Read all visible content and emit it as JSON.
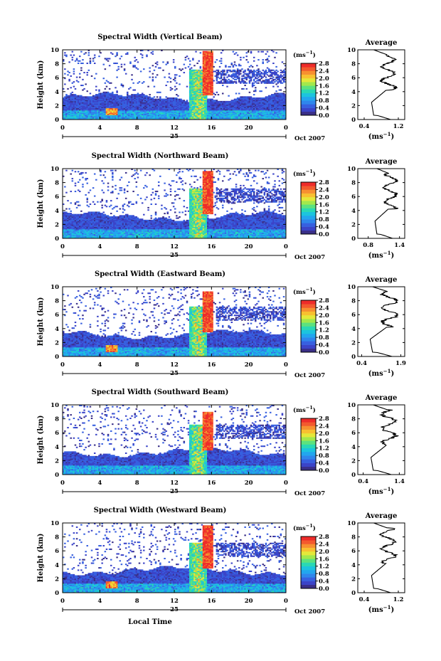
{
  "chart_data": [
    {
      "type": "heatmap",
      "title": "Spectral Width (Vertical Beam)",
      "ylabel": "Height (km)",
      "xlim": [
        0,
        24
      ],
      "ylim": [
        0,
        10
      ],
      "x_ticks": [
        "0",
        "4",
        "8",
        "12",
        "16",
        "20",
        "0"
      ],
      "y_ticks": [
        "0",
        "2",
        "4",
        "6",
        "8",
        "10"
      ],
      "day_label": "25",
      "date_label": "Oct 2007",
      "colorbar": {
        "unit": "(ms",
        "unit_exp": "−1",
        "unit_close": ")",
        "ticks": [
          "0.0",
          "0.4",
          "0.8",
          "1.2",
          "1.6",
          "2.0",
          "2.4",
          "2.8"
        ]
      },
      "profile": {
        "title": "Average",
        "xlabel": "(ms",
        "xlabel_exp": "−1",
        "xlabel_close": ")",
        "xlim": [
          0.25,
          1.35
        ],
        "x_ticks": [
          "0.4",
          "1.2"
        ],
        "y_ticks": [
          "0",
          "2",
          "4",
          "6",
          "8",
          "10"
        ]
      }
    },
    {
      "type": "heatmap",
      "title": "Spectral Width (Northward Beam)",
      "ylabel": "Height (km)",
      "xlim": [
        0,
        24
      ],
      "ylim": [
        0,
        10
      ],
      "x_ticks": [
        "0",
        "4",
        "8",
        "12",
        "16",
        "20",
        "0"
      ],
      "y_ticks": [
        "0",
        "2",
        "4",
        "6",
        "8",
        "10"
      ],
      "day_label": "25",
      "date_label": "Oct 2007",
      "colorbar": {
        "unit": "(ms",
        "unit_exp": "−1",
        "unit_close": ")",
        "ticks": [
          "0.0",
          "0.4",
          "0.8",
          "1.2",
          "1.6",
          "2.0",
          "2.4",
          "2.8"
        ]
      },
      "profile": {
        "title": "Average",
        "xlabel": "(ms",
        "xlabel_exp": "−1",
        "xlabel_close": ")",
        "xlim": [
          0.6,
          1.5
        ],
        "x_ticks": [
          "0.8",
          "1.4"
        ],
        "y_ticks": [
          "0",
          "2",
          "4",
          "6",
          "8",
          "10"
        ]
      }
    },
    {
      "type": "heatmap",
      "title": "Spectral Width (Eastward Beam)",
      "ylabel": "Height (km)",
      "xlim": [
        0,
        24
      ],
      "ylim": [
        0,
        10
      ],
      "x_ticks": [
        "0",
        "4",
        "8",
        "12",
        "16",
        "20",
        "0"
      ],
      "y_ticks": [
        "0",
        "2",
        "4",
        "6",
        "8",
        "10"
      ],
      "day_label": "25",
      "date_label": "Oct 2007",
      "colorbar": {
        "unit": "(ms",
        "unit_exp": "−1",
        "unit_close": ")",
        "ticks": [
          "0.0",
          "0.4",
          "0.8",
          "1.2",
          "1.6",
          "2.0",
          "2.4",
          "2.8"
        ]
      },
      "profile": {
        "title": "Average",
        "xlabel": "(ms",
        "xlabel_exp": "−1",
        "xlabel_close": ")",
        "xlim": [
          0.25,
          2.05
        ],
        "x_ticks": [
          "0.4",
          "1.9"
        ],
        "y_ticks": [
          "0",
          "2",
          "4",
          "6",
          "8",
          "10"
        ]
      }
    },
    {
      "type": "heatmap",
      "title": "Spectral Width (Southward Beam)",
      "ylabel": "Height (km)",
      "xlim": [
        0,
        24
      ],
      "ylim": [
        0,
        10
      ],
      "x_ticks": [
        "0",
        "4",
        "8",
        "12",
        "16",
        "20",
        "0"
      ],
      "y_ticks": [
        "0",
        "2",
        "4",
        "6",
        "8",
        "10"
      ],
      "day_label": "25",
      "date_label": "Oct 2007",
      "colorbar": {
        "unit": "(ms",
        "unit_exp": "−1",
        "unit_close": ")",
        "ticks": [
          "0.0",
          "0.4",
          "0.8",
          "1.2",
          "1.6",
          "2.0",
          "2.4",
          "2.8"
        ]
      },
      "profile": {
        "title": "Average",
        "xlabel": "(ms",
        "xlabel_exp": "−1",
        "xlabel_close": ")",
        "xlim": [
          0.25,
          1.55
        ],
        "x_ticks": [
          "0.4",
          "1.4"
        ],
        "y_ticks": [
          "0",
          "2",
          "4",
          "6",
          "8",
          "10"
        ]
      }
    },
    {
      "type": "heatmap",
      "title": "Spectral Width (Westward Beam)",
      "ylabel": "Height (km)",
      "xlabel": "Local Time",
      "xlim": [
        0,
        24
      ],
      "ylim": [
        0,
        10
      ],
      "x_ticks": [
        "0",
        "4",
        "8",
        "12",
        "16",
        "20",
        "0"
      ],
      "y_ticks": [
        "0",
        "2",
        "4",
        "6",
        "8",
        "10"
      ],
      "day_label": "25",
      "date_label": "Oct 2007",
      "colorbar": {
        "unit": "(ms",
        "unit_exp": "−1",
        "unit_close": ")",
        "ticks": [
          "0.0",
          "0.4",
          "0.8",
          "1.2",
          "1.6",
          "2.0",
          "2.4",
          "2.8"
        ]
      },
      "profile": {
        "title": "Average",
        "xlabel": "(ms",
        "xlabel_exp": "−1",
        "xlabel_close": ")",
        "xlim": [
          0.25,
          1.35
        ],
        "x_ticks": [
          "0.4",
          "1.2"
        ],
        "y_ticks": [
          "0",
          "2",
          "4",
          "6",
          "8",
          "10"
        ]
      }
    }
  ],
  "colormap": [
    "#3a2f88",
    "#3b44c8",
    "#3760e0",
    "#2f86ec",
    "#22a6ee",
    "#1cc4de",
    "#2ad8b4",
    "#5ce27e",
    "#a2e84c",
    "#e4e83a",
    "#f8c030",
    "#f79030",
    "#f35a2e",
    "#ee2c2a"
  ],
  "profile_line_color": "#000000"
}
